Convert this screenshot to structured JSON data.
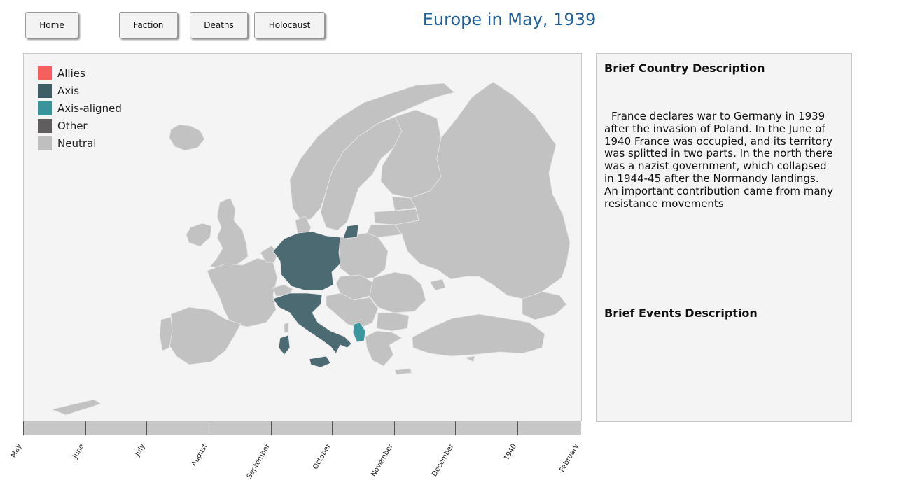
{
  "nav": {
    "home": "Home",
    "faction": "Faction",
    "deaths": "Deaths",
    "holocaust": "Holocaust"
  },
  "title": "Europe in May, 1939",
  "legend": [
    {
      "label": "Allies",
      "color": "#f55f5c"
    },
    {
      "label": "Axis",
      "color": "#3f5f66"
    },
    {
      "label": "Axis-aligned",
      "color": "#38939b"
    },
    {
      "label": "Other",
      "color": "#5f5d5e"
    },
    {
      "label": "Neutral",
      "color": "#bfbfbf"
    }
  ],
  "map_colors": {
    "neutral": "#c2c2c2",
    "axis": "#4b6a71",
    "axis_aligned": "#3b969e",
    "border": "#e6e6e6"
  },
  "info": {
    "country_heading": "Brief Country Description",
    "country_text": "France declares war to Germany in 1939 after the invasion of Poland. In the June of 1940 France was occupied, and its territory was splitted in two parts. In the north there was a nazist government, which collapsed in 1944-45 after the Normandy landings. An important contribution came from many resistance movements",
    "events_heading": "Brief Events Description"
  },
  "timeline": {
    "labels": [
      "May",
      "June",
      "July",
      "August",
      "September",
      "October",
      "November",
      "December",
      "1940",
      "February"
    ]
  }
}
